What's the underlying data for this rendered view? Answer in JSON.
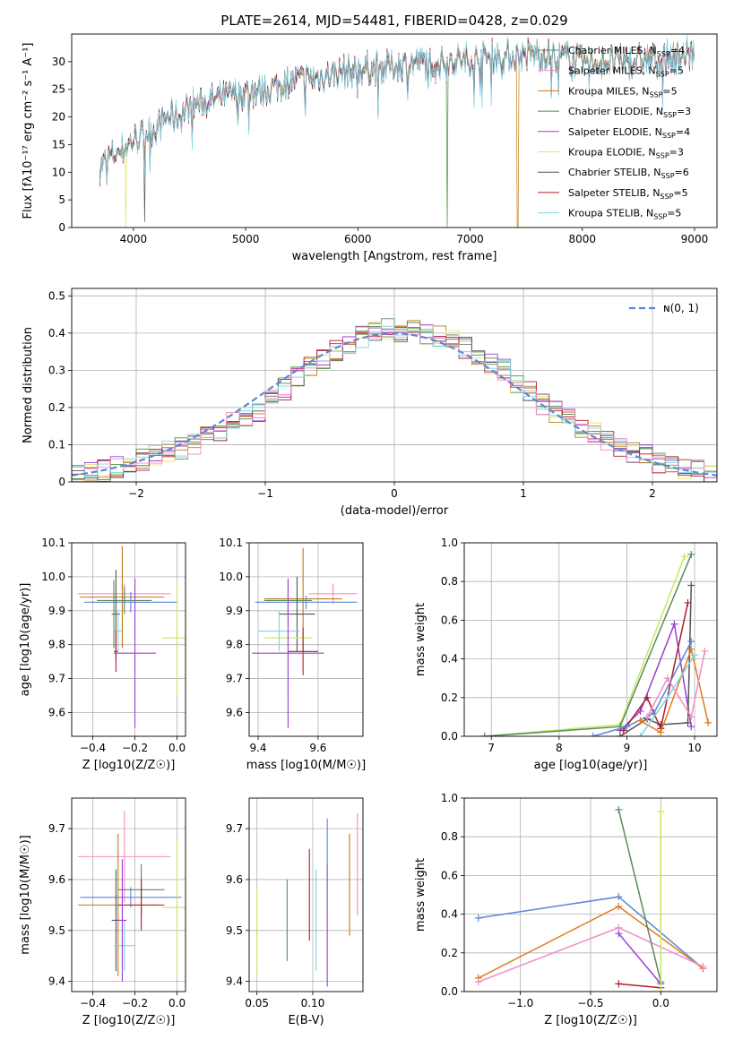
{
  "figure": {
    "title": "PLATE=2614, MJD=54481, FIBERID=0428, z=0.029"
  },
  "colors": {
    "c0": "#5a8a5c",
    "c1": "#f28cc6",
    "c2": "#c07a18",
    "c3": "#4c8a40",
    "c4": "#9a3fd0",
    "c5": "#e8e070",
    "c6": "#555555",
    "c7": "#b01c2e",
    "c8": "#7fd3e2",
    "blue": "#5b87d6",
    "orange": "#e07b20",
    "lime": "#c8e860",
    "green": "#5a8a5c",
    "pink": "#e78ac3",
    "purple": "#9a3fd0",
    "red": "#b01c2e",
    "cyan": "#7fd3e2",
    "dark": "#555555"
  },
  "chart_data": [
    {
      "type": "line",
      "xlabel": "wavelength [Angstrom, rest frame]",
      "ylabel": "Flux [fλ10⁻¹⁷ erg cm⁻² s⁻¹ A⁻¹]",
      "xlim": [
        3450,
        9200
      ],
      "ylim": [
        0,
        35
      ],
      "xticks": [
        4000,
        5000,
        6000,
        7000,
        8000,
        9000
      ],
      "yticks": [
        0,
        5,
        10,
        15,
        20,
        25,
        30
      ],
      "legend_position": "top-right",
      "legend": [
        {
          "label": "Chabrier MILES, N",
          "sub": "SSP",
          "tail": "=4"
        },
        {
          "label": "Salpeter MILES, N",
          "sub": "SSP",
          "tail": "=5"
        },
        {
          "label": "Kroupa MILES, N",
          "sub": "SSP",
          "tail": "=5"
        },
        {
          "label": "Chabrier ELODIE, N",
          "sub": "SSP",
          "tail": "=3"
        },
        {
          "label": "Salpeter ELODIE, N",
          "sub": "SSP",
          "tail": "=4"
        },
        {
          "label": "Kroupa ELODIE, N",
          "sub": "SSP",
          "tail": "=3"
        },
        {
          "label": "Chabrier STELIB, N",
          "sub": "SSP",
          "tail": "=6"
        },
        {
          "label": "Salpeter STELIB, N",
          "sub": "SSP",
          "tail": "=5"
        },
        {
          "label": "Kroupa STELIB, N",
          "sub": "SSP",
          "tail": "=5"
        }
      ],
      "spectrum_envelope": [
        [
          3700,
          11
        ],
        [
          3800,
          13
        ],
        [
          3900,
          14
        ],
        [
          4000,
          16
        ],
        [
          4100,
          17
        ],
        [
          4200,
          18
        ],
        [
          4300,
          20
        ],
        [
          4400,
          20
        ],
        [
          4500,
          22
        ],
        [
          4600,
          22.5
        ],
        [
          4800,
          23.5
        ],
        [
          5000,
          24.5
        ],
        [
          5200,
          25
        ],
        [
          5400,
          26.5
        ],
        [
          5600,
          27
        ],
        [
          5800,
          28
        ],
        [
          6000,
          28.5
        ],
        [
          6200,
          29
        ],
        [
          6400,
          29.5
        ],
        [
          6600,
          30
        ],
        [
          6800,
          30
        ],
        [
          7000,
          30.5
        ],
        [
          7200,
          31
        ],
        [
          7400,
          31
        ],
        [
          7600,
          31.5
        ],
        [
          7800,
          31
        ],
        [
          8000,
          30
        ],
        [
          8200,
          30
        ],
        [
          8400,
          30
        ],
        [
          8600,
          30.5
        ],
        [
          8800,
          31
        ],
        [
          9000,
          31.5
        ]
      ],
      "notes": "spectra plotted 3700-9000 A; deep dips near 4100, 3930, 6800, 7420 A"
    },
    {
      "type": "bar",
      "xlabel": "(data-model)/error",
      "ylabel": "Normed distribution",
      "xlim": [
        -2.5,
        2.5
      ],
      "ylim": [
        0,
        0.52
      ],
      "xticks": [
        -2,
        -1,
        0,
        1,
        2
      ],
      "yticks": [
        0,
        0.1,
        0.2,
        0.3,
        0.4,
        0.5
      ],
      "legend": "ɴ(0, 1)",
      "legend_position": "top-right",
      "bin_edges_start": -2.5,
      "bin_width": 0.1,
      "histogram": [
        0.02,
        0.025,
        0.03,
        0.04,
        0.05,
        0.06,
        0.07,
        0.08,
        0.09,
        0.1,
        0.12,
        0.14,
        0.16,
        0.17,
        0.19,
        0.22,
        0.25,
        0.28,
        0.31,
        0.33,
        0.35,
        0.37,
        0.39,
        0.4,
        0.41,
        0.4,
        0.41,
        0.4,
        0.39,
        0.38,
        0.36,
        0.34,
        0.32,
        0.3,
        0.27,
        0.24,
        0.21,
        0.19,
        0.17,
        0.15,
        0.13,
        0.11,
        0.09,
        0.08,
        0.07,
        0.05,
        0.04,
        0.03,
        0.03,
        0.02
      ]
    },
    {
      "type": "scatter",
      "xlabel": "Z [log10(Z/Z☉)]",
      "ylabel": "age [log10(age/yr)]",
      "xlim": [
        -0.5,
        0.04
      ],
      "ylim": [
        9.53,
        10.1
      ],
      "xticks": [
        -0.4,
        -0.2,
        0.0
      ],
      "yticks": [
        9.6,
        9.7,
        9.8,
        9.9,
        10.0,
        10.1
      ],
      "errorbars": [
        {
          "c": "c1",
          "x": -0.25,
          "xerr": 0.22,
          "y": 9.95,
          "yerr": 0.03
        },
        {
          "c": "c2",
          "x": -0.26,
          "xerr": 0.2,
          "y": 9.94,
          "yerr": 0.15
        },
        {
          "c": "c0",
          "x": -0.25,
          "xerr": 0.13,
          "y": 9.93,
          "yerr": 0.04
        },
        {
          "c": "blue",
          "x": -0.22,
          "xerr": 0.22,
          "y": 9.925,
          "yerr": 0.03
        },
        {
          "c": "c6",
          "x": -0.29,
          "xerr": 0.02,
          "y": 9.89,
          "yerr": 0.13
        },
        {
          "c": "c8",
          "x": -0.28,
          "xerr": 0.02,
          "y": 9.84,
          "yerr": 0.06
        },
        {
          "c": "lime",
          "x": 0.0,
          "xerr": 0.07,
          "y": 9.82,
          "yerr": 0.17
        },
        {
          "c": "c7",
          "x": -0.29,
          "xerr": 0.01,
          "y": 9.78,
          "yerr": 0.06
        },
        {
          "c": "c4",
          "x": -0.2,
          "xerr": 0.1,
          "y": 9.775,
          "yerr": 0.22
        },
        {
          "c": "c0",
          "x": -0.3,
          "xerr": 0.01,
          "y": 9.89,
          "yerr": 0.1
        }
      ]
    },
    {
      "type": "scatter",
      "xlabel": "mass [log10(M/M☉)]",
      "ylabel": "",
      "xlim": [
        9.37,
        9.75
      ],
      "ylim": [
        9.53,
        10.1
      ],
      "xticks": [
        9.4,
        9.6
      ],
      "yticks": [
        9.6,
        9.7,
        9.8,
        9.9,
        10.0,
        10.1
      ],
      "errorbars": [
        {
          "c": "c1",
          "x": 9.65,
          "xerr": 0.08,
          "y": 9.95,
          "yerr": 0.03
        },
        {
          "c": "c2",
          "x": 9.55,
          "xerr": 0.13,
          "y": 9.935,
          "yerr": 0.15
        },
        {
          "c": "c0",
          "x": 9.5,
          "xerr": 0.08,
          "y": 9.93,
          "yerr": 0.04
        },
        {
          "c": "blue",
          "x": 9.56,
          "xerr": 0.17,
          "y": 9.925,
          "yerr": 0.02
        },
        {
          "c": "c6",
          "x": 9.53,
          "xerr": 0.06,
          "y": 9.89,
          "yerr": 0.11
        },
        {
          "c": "c8",
          "x": 9.47,
          "xerr": 0.07,
          "y": 9.84,
          "yerr": 0.06
        },
        {
          "c": "lime",
          "x": 9.5,
          "xerr": 0.08,
          "y": 9.82,
          "yerr": 0.17
        },
        {
          "c": "c7",
          "x": 9.55,
          "xerr": 0.05,
          "y": 9.78,
          "yerr": 0.07
        },
        {
          "c": "c4",
          "x": 9.5,
          "xerr": 0.12,
          "y": 9.775,
          "yerr": 0.22
        }
      ]
    },
    {
      "type": "line",
      "xlabel": "age [log10(age/yr)]",
      "ylabel": "mass weight",
      "xlim": [
        6.6,
        10.33
      ],
      "ylim": [
        0,
        1.0
      ],
      "xticks": [
        7,
        8,
        9,
        10
      ],
      "yticks": [
        0.0,
        0.2,
        0.4,
        0.6,
        0.8,
        1.0
      ],
      "series": [
        {
          "c": "lime",
          "points": [
            [
              6.9,
              0.0
            ],
            [
              8.9,
              0.06
            ],
            [
              9.85,
              0.93
            ]
          ]
        },
        {
          "c": "c0",
          "points": [
            [
              6.9,
              0.0
            ],
            [
              8.9,
              0.05
            ],
            [
              9.95,
              0.94
            ]
          ]
        },
        {
          "c": "c4",
          "points": [
            [
              8.9,
              0.03
            ],
            [
              9.2,
              0.13
            ],
            [
              9.7,
              0.58
            ],
            [
              9.95,
              0.05
            ]
          ]
        },
        {
          "c": "c6",
          "points": [
            [
              8.9,
              0.0
            ],
            [
              9.3,
              0.09
            ],
            [
              9.5,
              0.06
            ],
            [
              9.9,
              0.07
            ],
            [
              9.95,
              0.78
            ]
          ]
        },
        {
          "c": "c7",
          "points": [
            [
              8.95,
              0.03
            ],
            [
              9.3,
              0.2
            ],
            [
              9.5,
              0.04
            ],
            [
              9.9,
              0.69
            ]
          ]
        },
        {
          "c": "blue",
          "points": [
            [
              8.5,
              0.0
            ],
            [
              9.0,
              0.05
            ],
            [
              9.4,
              0.12
            ],
            [
              9.95,
              0.49
            ]
          ]
        },
        {
          "c": "orange",
          "points": [
            [
              9.2,
              0.08
            ],
            [
              9.5,
              0.02
            ],
            [
              9.95,
              0.45
            ],
            [
              10.2,
              0.07
            ]
          ]
        },
        {
          "c": "c1",
          "points": [
            [
              9.3,
              0.1
            ],
            [
              9.6,
              0.3
            ],
            [
              9.95,
              0.1
            ],
            [
              10.15,
              0.44
            ]
          ]
        },
        {
          "c": "c8",
          "points": [
            [
              9.2,
              0.0
            ],
            [
              9.6,
              0.2
            ],
            [
              10.0,
              0.42
            ]
          ]
        }
      ]
    },
    {
      "type": "scatter",
      "xlabel": "Z [log10(Z/Z☉)]",
      "ylabel": "mass [log10(M/M☉)]",
      "xlim": [
        -0.5,
        0.04
      ],
      "ylim": [
        9.38,
        9.76
      ],
      "xticks": [
        -0.4,
        -0.2,
        0.0
      ],
      "yticks": [
        9.4,
        9.5,
        9.6,
        9.7
      ],
      "errorbars": [
        {
          "c": "c1",
          "x": -0.25,
          "xerr": 0.22,
          "y": 9.645,
          "yerr": 0.09
        },
        {
          "c": "blue",
          "x": -0.22,
          "xerr": 0.24,
          "y": 9.565,
          "yerr": 0.02
        },
        {
          "c": "c0",
          "x": -0.17,
          "xerr": 0.11,
          "y": 9.58,
          "yerr": 0.05
        },
        {
          "c": "lime",
          "x": 0.0,
          "xerr": 0.07,
          "y": 9.545,
          "yerr": 0.13
        },
        {
          "c": "c2",
          "x": -0.28,
          "xerr": 0.19,
          "y": 9.55,
          "yerr": 0.14
        },
        {
          "c": "c7",
          "x": -0.17,
          "xerr": 0.11,
          "y": 9.55,
          "yerr": 0.05
        },
        {
          "c": "c6",
          "x": -0.29,
          "xerr": 0.02,
          "y": 9.52,
          "yerr": 0.1
        },
        {
          "c": "c8",
          "x": -0.25,
          "xerr": 0.05,
          "y": 9.47,
          "yerr": 0.05
        },
        {
          "c": "c4",
          "x": -0.26,
          "xerr": 0.02,
          "y": 9.52,
          "yerr": 0.12
        }
      ]
    },
    {
      "type": "scatter",
      "xlabel": "E(B-V)",
      "ylabel": "",
      "xlim": [
        0.043,
        0.145
      ],
      "ylim": [
        9.38,
        9.76
      ],
      "xticks": [
        0.05,
        0.1
      ],
      "yticks": [
        9.4,
        9.5,
        9.6,
        9.7
      ],
      "errorbars": [
        {
          "c": "lime",
          "x": 0.05,
          "y": 9.5,
          "yerr": 0.085
        },
        {
          "c": "c0",
          "x": 0.077,
          "y": 9.52,
          "yerr": 0.08
        },
        {
          "c": "c7",
          "x": 0.097,
          "y": 9.57,
          "yerr": 0.09
        },
        {
          "c": "c8",
          "x": 0.103,
          "y": 9.52,
          "yerr": 0.1
        },
        {
          "c": "c4",
          "x": 0.113,
          "y": 9.51,
          "yerr": 0.12
        },
        {
          "c": "blue",
          "x": 0.113,
          "y": 9.64,
          "yerr": 0.08
        },
        {
          "c": "c2",
          "x": 0.133,
          "y": 9.59,
          "yerr": 0.1
        },
        {
          "c": "c1",
          "x": 0.14,
          "y": 9.63,
          "yerr": 0.1
        }
      ]
    },
    {
      "type": "line",
      "xlabel": "Z [log10(Z/Z☉)]",
      "ylabel": "mass weight",
      "xlim": [
        -1.4,
        0.4
      ],
      "ylim": [
        0,
        1.0
      ],
      "xticks": [
        -1.0,
        -0.5,
        0.0
      ],
      "yticks": [
        0.0,
        0.2,
        0.4,
        0.6,
        0.8,
        1.0
      ],
      "series": [
        {
          "c": "blue",
          "points": [
            [
              -1.3,
              0.38
            ],
            [
              -0.3,
              0.49
            ],
            [
              0.3,
              0.12
            ]
          ]
        },
        {
          "c": "orange",
          "points": [
            [
              -1.3,
              0.07
            ],
            [
              -0.3,
              0.44
            ],
            [
              0.3,
              0.12
            ]
          ]
        },
        {
          "c": "c1",
          "points": [
            [
              -1.3,
              0.05
            ],
            [
              -0.3,
              0.33
            ],
            [
              0.3,
              0.13
            ]
          ]
        },
        {
          "c": "c0",
          "points": [
            [
              -0.3,
              0.94
            ],
            [
              0.0,
              0.05
            ]
          ]
        },
        {
          "c": "c4",
          "points": [
            [
              -0.3,
              0.3
            ],
            [
              0.0,
              0.04
            ]
          ]
        },
        {
          "c": "c7",
          "points": [
            [
              -0.3,
              0.04
            ],
            [
              0.0,
              0.02
            ]
          ]
        },
        {
          "c": "lime",
          "points": [
            [
              0.0,
              0.93
            ],
            [
              0.0,
              0.0
            ]
          ]
        }
      ]
    }
  ]
}
